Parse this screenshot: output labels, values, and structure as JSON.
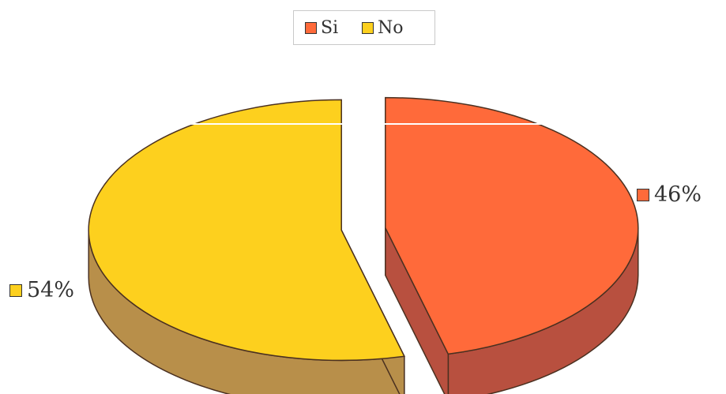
{
  "chart_data": {
    "type": "pie",
    "title": "",
    "categories": [
      "Si",
      "No"
    ],
    "values": [
      46,
      54
    ],
    "data_labels": [
      "46%",
      "54%"
    ],
    "legend": {
      "entries": [
        "Si",
        "No"
      ],
      "placement": "top"
    },
    "exploded": true,
    "three_d": true
  },
  "colors": {
    "si_top": "#ff6a3a",
    "si_side": "#b8503f",
    "no_top": "#fdd01e",
    "no_side": "#b88f4a",
    "outline": "#4a3020"
  }
}
